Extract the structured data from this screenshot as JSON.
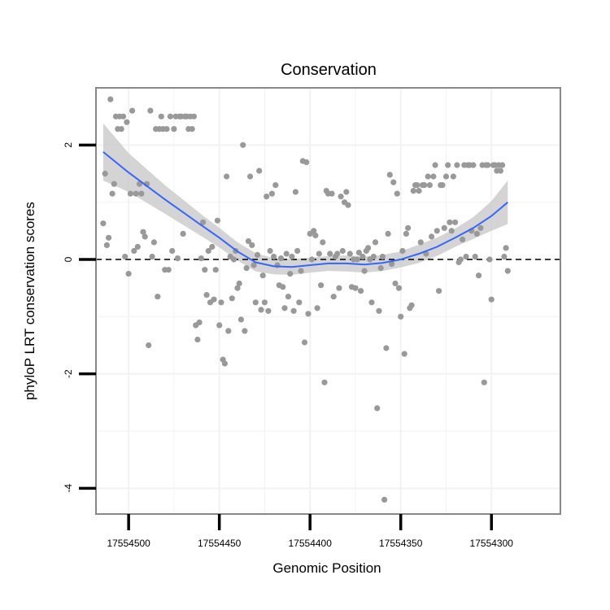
{
  "chart_data": {
    "type": "scatter",
    "title": "Conservation",
    "xlabel": "Genomic Position",
    "ylabel": "phyloP LRT conservation scores",
    "x_reversed": true,
    "xlim": [
      17554518,
      17554262
    ],
    "ylim": [
      -4.45,
      3.0
    ],
    "x_ticks": [
      17554500,
      17554450,
      17554400,
      17554350,
      17554300
    ],
    "x_tick_labels": [
      "17554500",
      "17554450",
      "17554400",
      "17554350",
      "17554300"
    ],
    "y_ticks": [
      2,
      0,
      -2,
      -4
    ],
    "y_tick_labels": [
      "2",
      "0",
      "-2",
      "-4"
    ],
    "reference_line": {
      "y": 0,
      "style": "dashed",
      "color": "#000000"
    },
    "grid": true,
    "colors": {
      "points": "#999999",
      "smooth": "#3366ff",
      "ribbon": "#cccccc",
      "panel_border": "#888888",
      "grid": "#f2f2f2"
    },
    "series": [
      {
        "name": "phyloP scores",
        "points": [
          [
            17554514,
            0.63
          ],
          [
            17554513,
            1.5
          ],
          [
            17554512,
            0.25
          ],
          [
            17554511,
            0.38
          ],
          [
            17554510,
            2.8
          ],
          [
            17554509,
            1.15
          ],
          [
            17554508,
            1.32
          ],
          [
            17554507,
            2.5
          ],
          [
            17554506,
            2.28
          ],
          [
            17554505,
            2.5
          ],
          [
            17554504,
            2.28
          ],
          [
            17554503,
            2.5
          ],
          [
            17554502,
            0.05
          ],
          [
            17554501,
            2.4
          ],
          [
            17554500,
            -0.25
          ],
          [
            17554499,
            1.15
          ],
          [
            17554498,
            2.6
          ],
          [
            17554497,
            0.15
          ],
          [
            17554496,
            1.15
          ],
          [
            17554495,
            0.22
          ],
          [
            17554494,
            1.32
          ],
          [
            17554493,
            1.15
          ],
          [
            17554492,
            0.48
          ],
          [
            17554491,
            0.4
          ],
          [
            17554490,
            1.32
          ],
          [
            17554489,
            -1.5
          ],
          [
            17554488,
            2.6
          ],
          [
            17554487,
            0.05
          ],
          [
            17554486,
            0.3
          ],
          [
            17554485,
            2.28
          ],
          [
            17554484,
            -0.65
          ],
          [
            17554483,
            2.28
          ],
          [
            17554482,
            2.5
          ],
          [
            17554481,
            2.28
          ],
          [
            17554480,
            -0.18
          ],
          [
            17554479,
            2.28
          ],
          [
            17554478,
            -0.18
          ],
          [
            17554477,
            2.5
          ],
          [
            17554476,
            0.15
          ],
          [
            17554475,
            2.28
          ],
          [
            17554474,
            2.5
          ],
          [
            17554473,
            0.02
          ],
          [
            17554472,
            2.5
          ],
          [
            17554471,
            2.5
          ],
          [
            17554470,
            0.45
          ],
          [
            17554469,
            2.5
          ],
          [
            17554468,
            2.5
          ],
          [
            17554467,
            2.28
          ],
          [
            17554466,
            2.5
          ],
          [
            17554465,
            2.28
          ],
          [
            17554464,
            2.5
          ],
          [
            17554463,
            -1.15
          ],
          [
            17554462,
            -1.4
          ],
          [
            17554461,
            -1.1
          ],
          [
            17554460,
            0.02
          ],
          [
            17554459,
            0.65
          ],
          [
            17554458,
            -0.18
          ],
          [
            17554457,
            -0.62
          ],
          [
            17554456,
            0.15
          ],
          [
            17554455,
            -0.75
          ],
          [
            17554454,
            0.22
          ],
          [
            17554453,
            -0.7
          ],
          [
            17554452,
            -0.18
          ],
          [
            17554451,
            0.68
          ],
          [
            17554450,
            -1.15
          ],
          [
            17554449,
            -0.75
          ],
          [
            17554448,
            -1.75
          ],
          [
            17554447,
            -1.82
          ],
          [
            17554446,
            1.45
          ],
          [
            17554445,
            -1.25
          ],
          [
            17554444,
            0.05
          ],
          [
            17554443,
            -0.68
          ],
          [
            17554442,
            0.0
          ],
          [
            17554441,
            0.15
          ],
          [
            17554440,
            -0.5
          ],
          [
            17554439,
            -0.42
          ],
          [
            17554438,
            -1.05
          ],
          [
            17554437,
            2.0
          ],
          [
            17554436,
            -1.25
          ],
          [
            17554435,
            -0.15
          ],
          [
            17554434,
            0.32
          ],
          [
            17554433,
            1.45
          ],
          [
            17554432,
            0.25
          ],
          [
            17554431,
            -0.1
          ],
          [
            17554430,
            -0.75
          ],
          [
            17554429,
            0.08
          ],
          [
            17554428,
            1.55
          ],
          [
            17554427,
            -0.88
          ],
          [
            17554426,
            -0.28
          ],
          [
            17554425,
            -0.75
          ],
          [
            17554424,
            1.1
          ],
          [
            17554423,
            -0.9
          ],
          [
            17554422,
            0.15
          ],
          [
            17554421,
            1.15
          ],
          [
            17554420,
            0.05
          ],
          [
            17554419,
            1.3
          ],
          [
            17554418,
            -0.1
          ],
          [
            17554417,
            -0.45
          ],
          [
            17554416,
            0.02
          ],
          [
            17554415,
            -0.48
          ],
          [
            17554414,
            -0.85
          ],
          [
            17554413,
            0.1
          ],
          [
            17554412,
            -0.65
          ],
          [
            17554411,
            -0.25
          ],
          [
            17554410,
            0.05
          ],
          [
            17554409,
            -0.9
          ],
          [
            17554408,
            1.18
          ],
          [
            17554407,
            0.15
          ],
          [
            17554406,
            -0.75
          ],
          [
            17554405,
            -0.2
          ],
          [
            17554404,
            1.72
          ],
          [
            17554403,
            -1.45
          ],
          [
            17554402,
            1.7
          ],
          [
            17554401,
            -0.95
          ],
          [
            17554400,
            0.45
          ],
          [
            17554399,
            0.0
          ],
          [
            17554398,
            0.5
          ],
          [
            17554397,
            0.42
          ],
          [
            17554396,
            -0.85
          ],
          [
            17554395,
            0.1
          ],
          [
            17554394,
            -0.45
          ],
          [
            17554393,
            0.3
          ],
          [
            17554392,
            -2.15
          ],
          [
            17554391,
            1.2
          ],
          [
            17554390,
            1.15
          ],
          [
            17554389,
            0.1
          ],
          [
            17554388,
            1.15
          ],
          [
            17554387,
            -0.65
          ],
          [
            17554386,
            0.05
          ],
          [
            17554385,
            0.1
          ],
          [
            17554384,
            -0.5
          ],
          [
            17554383,
            1.1
          ],
          [
            17554382,
            0.15
          ],
          [
            17554381,
            1.0
          ],
          [
            17554380,
            1.18
          ],
          [
            17554379,
            0.95
          ],
          [
            17554378,
            0.1
          ],
          [
            17554377,
            -0.48
          ],
          [
            17554376,
            0.0
          ],
          [
            17554375,
            -0.5
          ],
          [
            17554374,
            0.0
          ],
          [
            17554373,
            0.12
          ],
          [
            17554372,
            -0.55
          ],
          [
            17554371,
            0.05
          ],
          [
            17554370,
            -0.2
          ],
          [
            17554369,
            0.15
          ],
          [
            17554368,
            0.2
          ],
          [
            17554367,
            0.0
          ],
          [
            17554366,
            -0.75
          ],
          [
            17554365,
            0.05
          ],
          [
            17554364,
            0.3
          ],
          [
            17554363,
            -2.6
          ],
          [
            17554362,
            -0.9
          ],
          [
            17554361,
            -0.15
          ],
          [
            17554360,
            0.05
          ],
          [
            17554359,
            -4.2
          ],
          [
            17554358,
            -1.55
          ],
          [
            17554357,
            0.45
          ],
          [
            17554356,
            1.48
          ],
          [
            17554355,
            -0.08
          ],
          [
            17554354,
            1.35
          ],
          [
            17554353,
            -0.42
          ],
          [
            17554352,
            1.15
          ],
          [
            17554351,
            -0.5
          ],
          [
            17554350,
            -1.0
          ],
          [
            17554349,
            0.15
          ],
          [
            17554348,
            -1.65
          ],
          [
            17554347,
            0.45
          ],
          [
            17554346,
            0.55
          ],
          [
            17554345,
            -0.85
          ],
          [
            17554344,
            -0.8
          ],
          [
            17554343,
            1.2
          ],
          [
            17554342,
            1.3
          ],
          [
            17554341,
            1.3
          ],
          [
            17554340,
            1.2
          ],
          [
            17554339,
            0.3
          ],
          [
            17554338,
            1.3
          ],
          [
            17554337,
            1.3
          ],
          [
            17554336,
            0.1
          ],
          [
            17554335,
            1.45
          ],
          [
            17554334,
            1.3
          ],
          [
            17554333,
            0.4
          ],
          [
            17554332,
            1.45
          ],
          [
            17554331,
            1.65
          ],
          [
            17554330,
            0.5
          ],
          [
            17554329,
            -0.55
          ],
          [
            17554328,
            1.3
          ],
          [
            17554327,
            1.3
          ],
          [
            17554326,
            0.55
          ],
          [
            17554325,
            1.45
          ],
          [
            17554324,
            1.65
          ],
          [
            17554323,
            0.65
          ],
          [
            17554322,
            0.5
          ],
          [
            17554321,
            1.45
          ],
          [
            17554320,
            0.65
          ],
          [
            17554319,
            1.65
          ],
          [
            17554318,
            -0.05
          ],
          [
            17554317,
            0.0
          ],
          [
            17554316,
            0.35
          ],
          [
            17554315,
            1.65
          ],
          [
            17554314,
            0.05
          ],
          [
            17554313,
            1.65
          ],
          [
            17554312,
            1.65
          ],
          [
            17554311,
            0.5
          ],
          [
            17554310,
            1.65
          ],
          [
            17554309,
            0.05
          ],
          [
            17554308,
            0.45
          ],
          [
            17554307,
            -0.28
          ],
          [
            17554306,
            0.55
          ],
          [
            17554305,
            1.65
          ],
          [
            17554304,
            -2.15
          ],
          [
            17554303,
            1.65
          ],
          [
            17554302,
            1.65
          ],
          [
            17554301,
            0.0
          ],
          [
            17554300,
            -0.7
          ],
          [
            17554299,
            1.65
          ],
          [
            17554298,
            1.65
          ],
          [
            17554297,
            1.55
          ],
          [
            17554296,
            1.65
          ],
          [
            17554295,
            1.55
          ],
          [
            17554294,
            1.65
          ],
          [
            17554293,
            0.05
          ],
          [
            17554292,
            0.2
          ],
          [
            17554291,
            -0.2
          ]
        ]
      }
    ],
    "smooth": {
      "method": "loess",
      "x": [
        17554514,
        17554500,
        17554480,
        17554460,
        17554450,
        17554440,
        17554430,
        17554420,
        17554410,
        17554400,
        17554390,
        17554380,
        17554370,
        17554360,
        17554350,
        17554340,
        17554330,
        17554320,
        17554310,
        17554300,
        17554291
      ],
      "y": [
        1.88,
        1.52,
        1.05,
        0.6,
        0.38,
        0.14,
        -0.05,
        -0.12,
        -0.13,
        -0.1,
        -0.07,
        -0.07,
        -0.09,
        -0.06,
        0.0,
        0.1,
        0.22,
        0.38,
        0.55,
        0.76,
        1.0
      ],
      "ci_low": [
        1.38,
        1.18,
        0.8,
        0.41,
        0.21,
        -0.02,
        -0.21,
        -0.26,
        -0.27,
        -0.23,
        -0.2,
        -0.21,
        -0.23,
        -0.2,
        -0.14,
        -0.06,
        0.06,
        0.22,
        0.36,
        0.5,
        0.62
      ],
      "ci_high": [
        2.38,
        1.86,
        1.3,
        0.79,
        0.55,
        0.3,
        0.11,
        0.02,
        0.01,
        0.03,
        0.06,
        0.07,
        0.05,
        0.08,
        0.14,
        0.26,
        0.38,
        0.54,
        0.74,
        1.02,
        1.38
      ]
    }
  }
}
